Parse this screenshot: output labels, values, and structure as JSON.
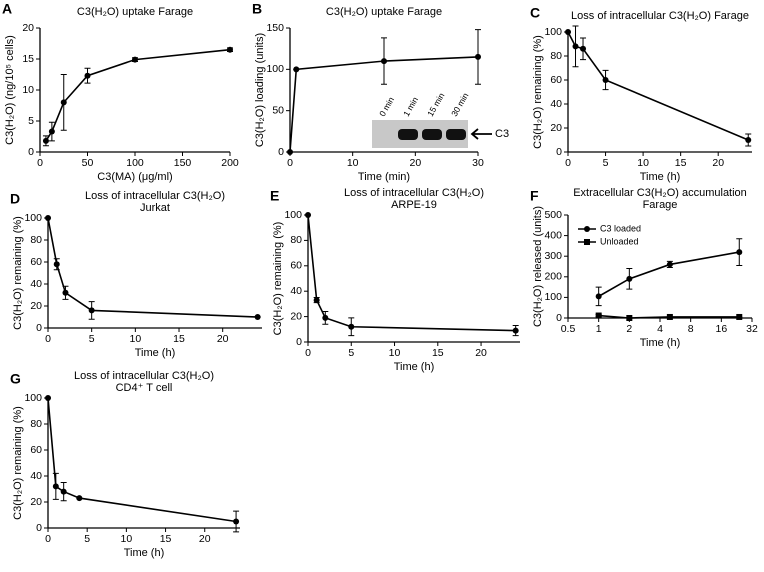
{
  "chart_data": [
    {
      "type": "line",
      "label": "A",
      "title": "C3(H₂O) uptake Farage",
      "xlabel": "C3(MA) (μg/ml)",
      "ylabel": "C3(H₂O) (ng/10⁵ cells)",
      "x": [
        6.25,
        12.5,
        25,
        50,
        100,
        200
      ],
      "values": [
        1.8,
        3.3,
        8.0,
        12.3,
        14.9,
        16.5
      ],
      "errors": [
        0.8,
        1.5,
        4.5,
        1.2,
        0.3,
        0.3
      ],
      "color": "#000000",
      "marker": "circle",
      "xlim": [
        0,
        200
      ],
      "xticks": [
        0,
        50,
        100,
        150,
        200
      ],
      "ylim": [
        0,
        20
      ],
      "yticks": [
        0,
        5,
        10,
        15,
        20
      ]
    },
    {
      "type": "line",
      "label": "B",
      "title": "C3(H₂O) uptake Farage",
      "xlabel": "Time (min)",
      "ylabel": "C3(H₂O) loading (units)",
      "x": [
        0,
        1,
        15,
        30
      ],
      "values": [
        0,
        100,
        110,
        115
      ],
      "errors": [
        0,
        0,
        28,
        33
      ],
      "color": "#000000",
      "marker": "circle",
      "xlim": [
        0,
        30
      ],
      "xticks": [
        0,
        10,
        20,
        30
      ],
      "ylim": [
        0,
        150
      ],
      "yticks": [
        0,
        50,
        100,
        150
      ],
      "inset": {
        "lanes": [
          "0 min",
          "1 min",
          "15 min",
          "30 min"
        ],
        "band_label": "C3"
      }
    },
    {
      "type": "line",
      "label": "C",
      "title": "Loss of intracellular C3(H₂O) Farage",
      "xlabel": "Time (h)",
      "ylabel": "C3(H₂O) remaining (%)",
      "x": [
        0,
        1,
        2,
        5,
        24
      ],
      "values": [
        100,
        88,
        86,
        60,
        10
      ],
      "errors": [
        0,
        17,
        9,
        8,
        5
      ],
      "color": "#000000",
      "marker": "circle",
      "xlim": [
        0,
        24.5
      ],
      "xticks": [
        0,
        5,
        10,
        15,
        20
      ],
      "ylim": [
        0,
        100
      ],
      "yticks": [
        0,
        20,
        40,
        60,
        80,
        100
      ]
    },
    {
      "type": "line",
      "label": "D",
      "title": "Loss of intracellular C3(H₂O)",
      "subtitle": "Jurkat",
      "xlabel": "Time (h)",
      "ylabel": "C3(H₂O) remaining (%)",
      "x": [
        0,
        1,
        2,
        5,
        24
      ],
      "values": [
        100,
        58,
        32,
        16,
        10
      ],
      "errors": [
        0,
        5,
        6,
        8,
        0
      ],
      "color": "#000000",
      "marker": "circle",
      "xlim": [
        0,
        24.5
      ],
      "xticks": [
        0,
        5,
        10,
        15,
        20
      ],
      "ylim": [
        0,
        100
      ],
      "yticks": [
        0,
        20,
        40,
        60,
        80,
        100
      ]
    },
    {
      "type": "line",
      "label": "E",
      "title": "Loss of intracellular C3(H₂O)",
      "subtitle": "ARPE-19",
      "xlabel": "Time (h)",
      "ylabel": "C3(H₂O) remaining (%)",
      "x": [
        0,
        1,
        2,
        5,
        24
      ],
      "values": [
        100,
        33,
        19,
        12,
        9
      ],
      "errors": [
        0,
        2,
        5,
        7,
        4
      ],
      "color": "#000000",
      "marker": "circle",
      "xlim": [
        0,
        24.5
      ],
      "xticks": [
        0,
        5,
        10,
        15,
        20
      ],
      "ylim": [
        0,
        100
      ],
      "yticks": [
        0,
        20,
        40,
        60,
        80,
        100
      ]
    },
    {
      "type": "line",
      "label": "F",
      "title": "Extracellular C3(H₂O) accumulation",
      "subtitle": "Farage",
      "xlabel": "Time (h)",
      "ylabel": "C3(H₂O) released (units)",
      "x": [
        1,
        2,
        5,
        24
      ],
      "series": [
        {
          "name": "C3 loaded",
          "color": "#000000",
          "marker": "circle",
          "values": [
            105,
            190,
            260,
            320
          ],
          "errors": [
            45,
            50,
            15,
            65
          ]
        },
        {
          "name": "Unloaded",
          "color": "#000000",
          "marker": "square",
          "values": [
            12,
            0,
            5,
            5
          ],
          "errors": [
            5,
            0,
            0,
            0
          ]
        }
      ],
      "legend": "upper left",
      "xscale": "log",
      "xlim": [
        0.5,
        32
      ],
      "xticks": [
        0.5,
        1,
        2,
        4,
        8,
        16,
        32
      ],
      "ylim": [
        0,
        500
      ],
      "yticks": [
        0,
        100,
        200,
        300,
        400,
        500
      ]
    },
    {
      "type": "line",
      "label": "G",
      "title": "Loss of intracellular C3(H₂O)",
      "subtitle": "CD4⁺ T cell",
      "xlabel": "Time (h)",
      "ylabel": "C3(H₂O) remaining (%)",
      "x": [
        0,
        1,
        2,
        4,
        24
      ],
      "values": [
        100,
        32,
        28,
        23,
        5
      ],
      "errors": [
        0,
        10,
        7,
        0,
        8
      ],
      "color": "#000000",
      "marker": "circle",
      "xlim": [
        0,
        24.5
      ],
      "xticks": [
        0,
        5,
        10,
        15,
        20
      ],
      "ylim": [
        0,
        100
      ],
      "yticks": [
        0,
        20,
        40,
        60,
        80,
        100
      ]
    }
  ]
}
